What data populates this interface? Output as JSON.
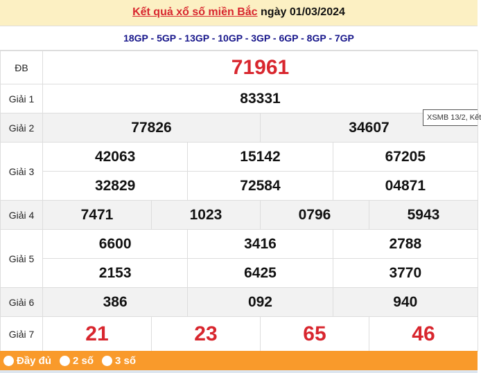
{
  "header": {
    "title_link": "Kết quả xổ số miền Bắc",
    "date_text": "ngày 01/03/2024"
  },
  "codes": "18GP - 5GP - 13GP - 10GP - 3GP - 6GP - 8GP - 7GP",
  "prizes": {
    "db": {
      "label": "ĐB",
      "values": [
        "71961"
      ]
    },
    "g1": {
      "label": "Giải 1",
      "values": [
        "83331"
      ]
    },
    "g2": {
      "label": "Giải 2",
      "values": [
        "77826",
        "34607"
      ]
    },
    "g3": {
      "label": "Giải 3",
      "values": [
        "42063",
        "15142",
        "67205",
        "32829",
        "72584",
        "04871"
      ]
    },
    "g4": {
      "label": "Giải 4",
      "values": [
        "7471",
        "1023",
        "0796",
        "5943"
      ]
    },
    "g5": {
      "label": "Giải 5",
      "values": [
        "6600",
        "3416",
        "2788",
        "2153",
        "6425",
        "3770"
      ]
    },
    "g6": {
      "label": "Giải 6",
      "values": [
        "386",
        "092",
        "940"
      ]
    },
    "g7": {
      "label": "Giải 7",
      "values": [
        "21",
        "23",
        "65",
        "46"
      ]
    }
  },
  "tooltip": "XSMB 13/2, Kết",
  "footer": {
    "options": [
      "Đầy đủ",
      "2 số",
      "3 số"
    ]
  },
  "colors": {
    "accent_red": "#d8262e",
    "header_bg": "#fcf0c3",
    "footer_bg": "#f99a2b",
    "code_blue": "#16158a"
  }
}
